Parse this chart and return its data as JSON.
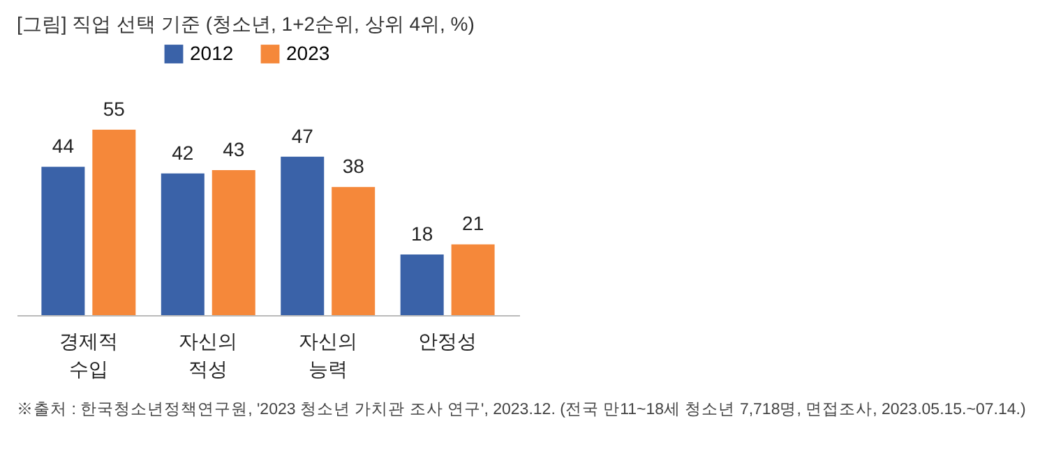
{
  "chart_data": {
    "type": "bar",
    "title": "[그림] 직업 선택 기준 (청소년, 1+2순위, 상위 4위, %)",
    "categories": [
      "경제적 수입",
      "자신의 적성",
      "자신의 능력",
      "안정성"
    ],
    "series": [
      {
        "name": "2012",
        "color": "#3a62a8",
        "values": [
          44,
          42,
          47,
          18
        ]
      },
      {
        "name": "2023",
        "color": "#f5883a",
        "values": [
          55,
          43,
          38,
          21
        ]
      }
    ],
    "data_labels": true,
    "legend": "top",
    "annotations": [
      "※출처 : 한국청소년정책연구원, '2023 청소년 가치관 조사 연구', 2023.12. (전국 만11~18세 청소년 7,718명, 면접조사, 2023.05.15.~07.14.)"
    ]
  }
}
